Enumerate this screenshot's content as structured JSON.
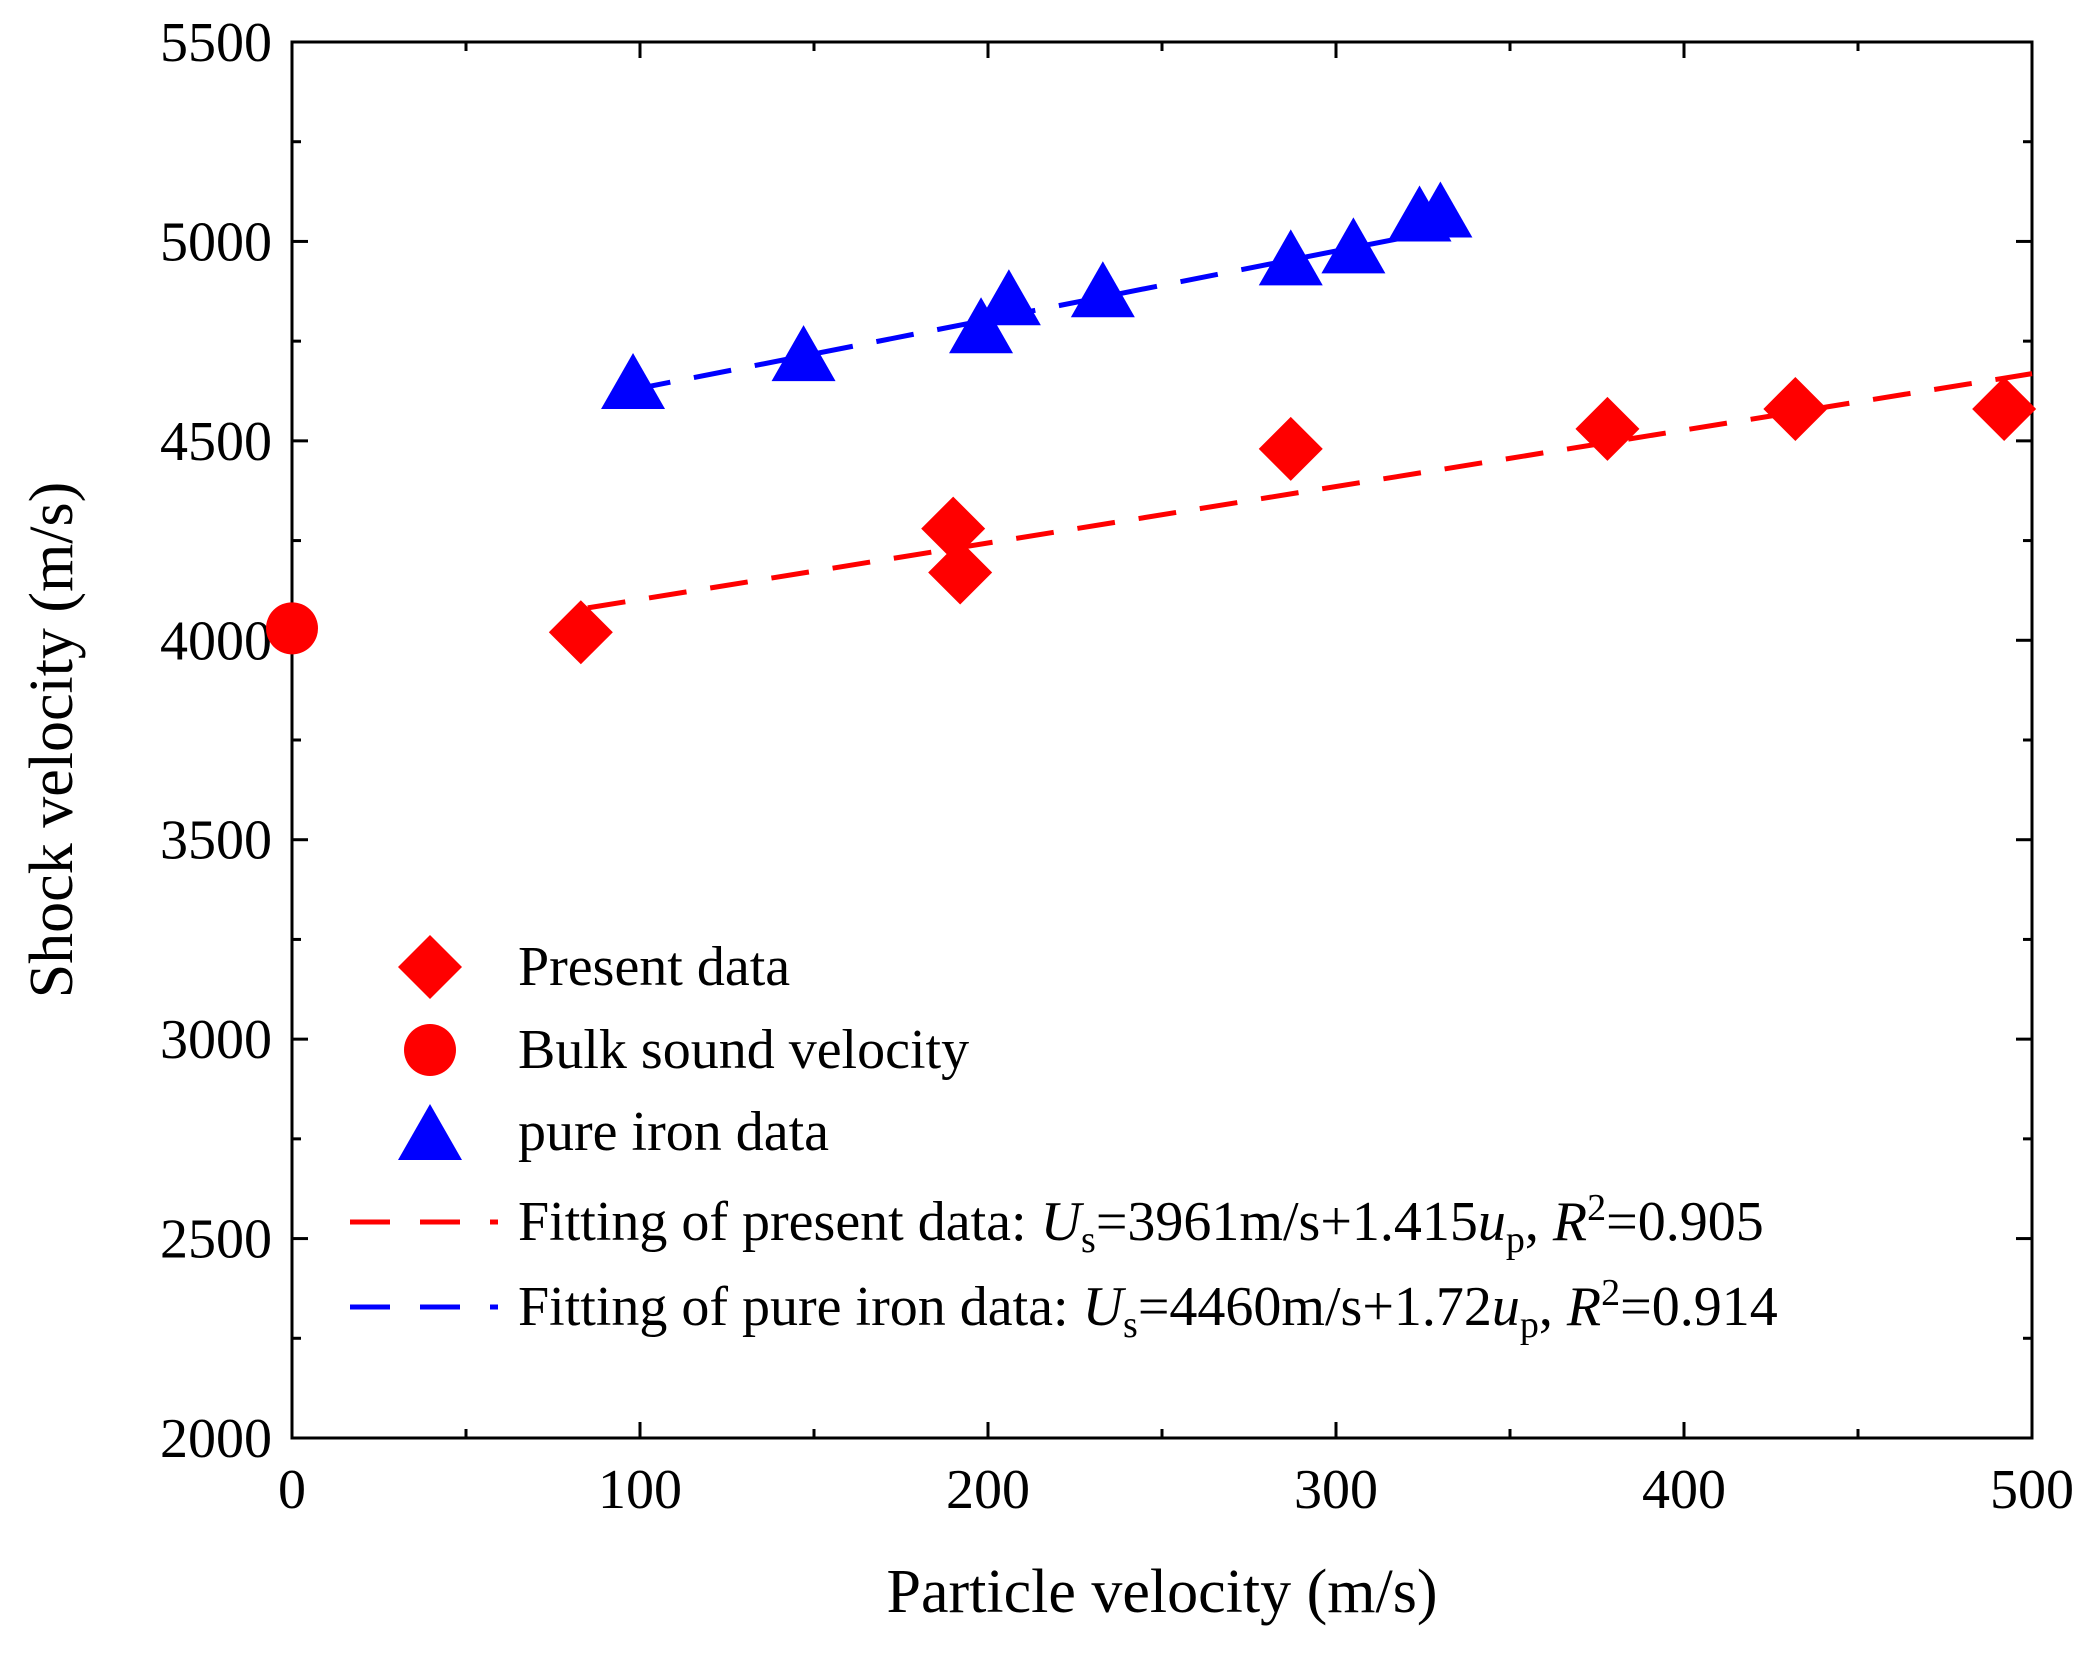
{
  "chart_data": {
    "type": "scatter",
    "title": "",
    "xlabel": "Particle velocity (m/s)",
    "ylabel": "Shock velocity (m/s)",
    "xlim": [
      0,
      500
    ],
    "ylim": [
      2000,
      5500
    ],
    "xticks": [
      0,
      100,
      200,
      300,
      400,
      500
    ],
    "xtick_labels": [
      "0",
      "100",
      "200",
      "300",
      "400",
      "500"
    ],
    "yticks": [
      2000,
      2500,
      3000,
      3500,
      4000,
      4500,
      5000,
      5500
    ],
    "ytick_labels": [
      "2000",
      "2500",
      "3000",
      "3500",
      "4000",
      "4500",
      "5000",
      "5500"
    ],
    "grid": false,
    "legend_position": "bottom-left",
    "series": [
      {
        "name": "Present data",
        "marker": "diamond",
        "color": "#ff0000",
        "points": [
          [
            83,
            4020
          ],
          [
            190,
            4280
          ],
          [
            192,
            4170
          ],
          [
            287,
            4480
          ],
          [
            378,
            4530
          ],
          [
            432,
            4580
          ],
          [
            492,
            4580
          ]
        ]
      },
      {
        "name": "Bulk sound velocity",
        "marker": "circle",
        "color": "#ff0000",
        "points": [
          [
            0,
            4030
          ]
        ]
      },
      {
        "name": "pure iron data",
        "marker": "triangle",
        "color": "#0000ff",
        "points": [
          [
            98,
            4650
          ],
          [
            147,
            4720
          ],
          [
            198,
            4790
          ],
          [
            206,
            4860
          ],
          [
            233,
            4880
          ],
          [
            287,
            4960
          ],
          [
            305,
            4990
          ],
          [
            324,
            5070
          ],
          [
            330,
            5080
          ]
        ]
      }
    ],
    "fits": [
      {
        "name": "Fitting of present data",
        "color": "#ff0000",
        "style": "dashed",
        "intercept": 3961,
        "slope": 1.415,
        "x_range": [
          85,
          500
        ],
        "equation": {
          "lhs": "U",
          "lhs_sub": "s",
          "rhs_const": "=3961m/s+1.415",
          "var": "u",
          "var_sub": "p",
          "r_label": "R",
          "r_sup": "2",
          "r_value": "=0.905"
        }
      },
      {
        "name": "Fitting of pure iron data",
        "color": "#0000ff",
        "style": "dashed",
        "intercept": 4460,
        "slope": 1.72,
        "x_range": [
          98,
          330
        ],
        "equation": {
          "lhs": "U",
          "lhs_sub": "s",
          "rhs_const": "=4460m/s+1.72",
          "var": "u",
          "var_sub": "p",
          "r_label": "R",
          "r_sup": "2",
          "r_value": "=0.914"
        }
      }
    ]
  }
}
